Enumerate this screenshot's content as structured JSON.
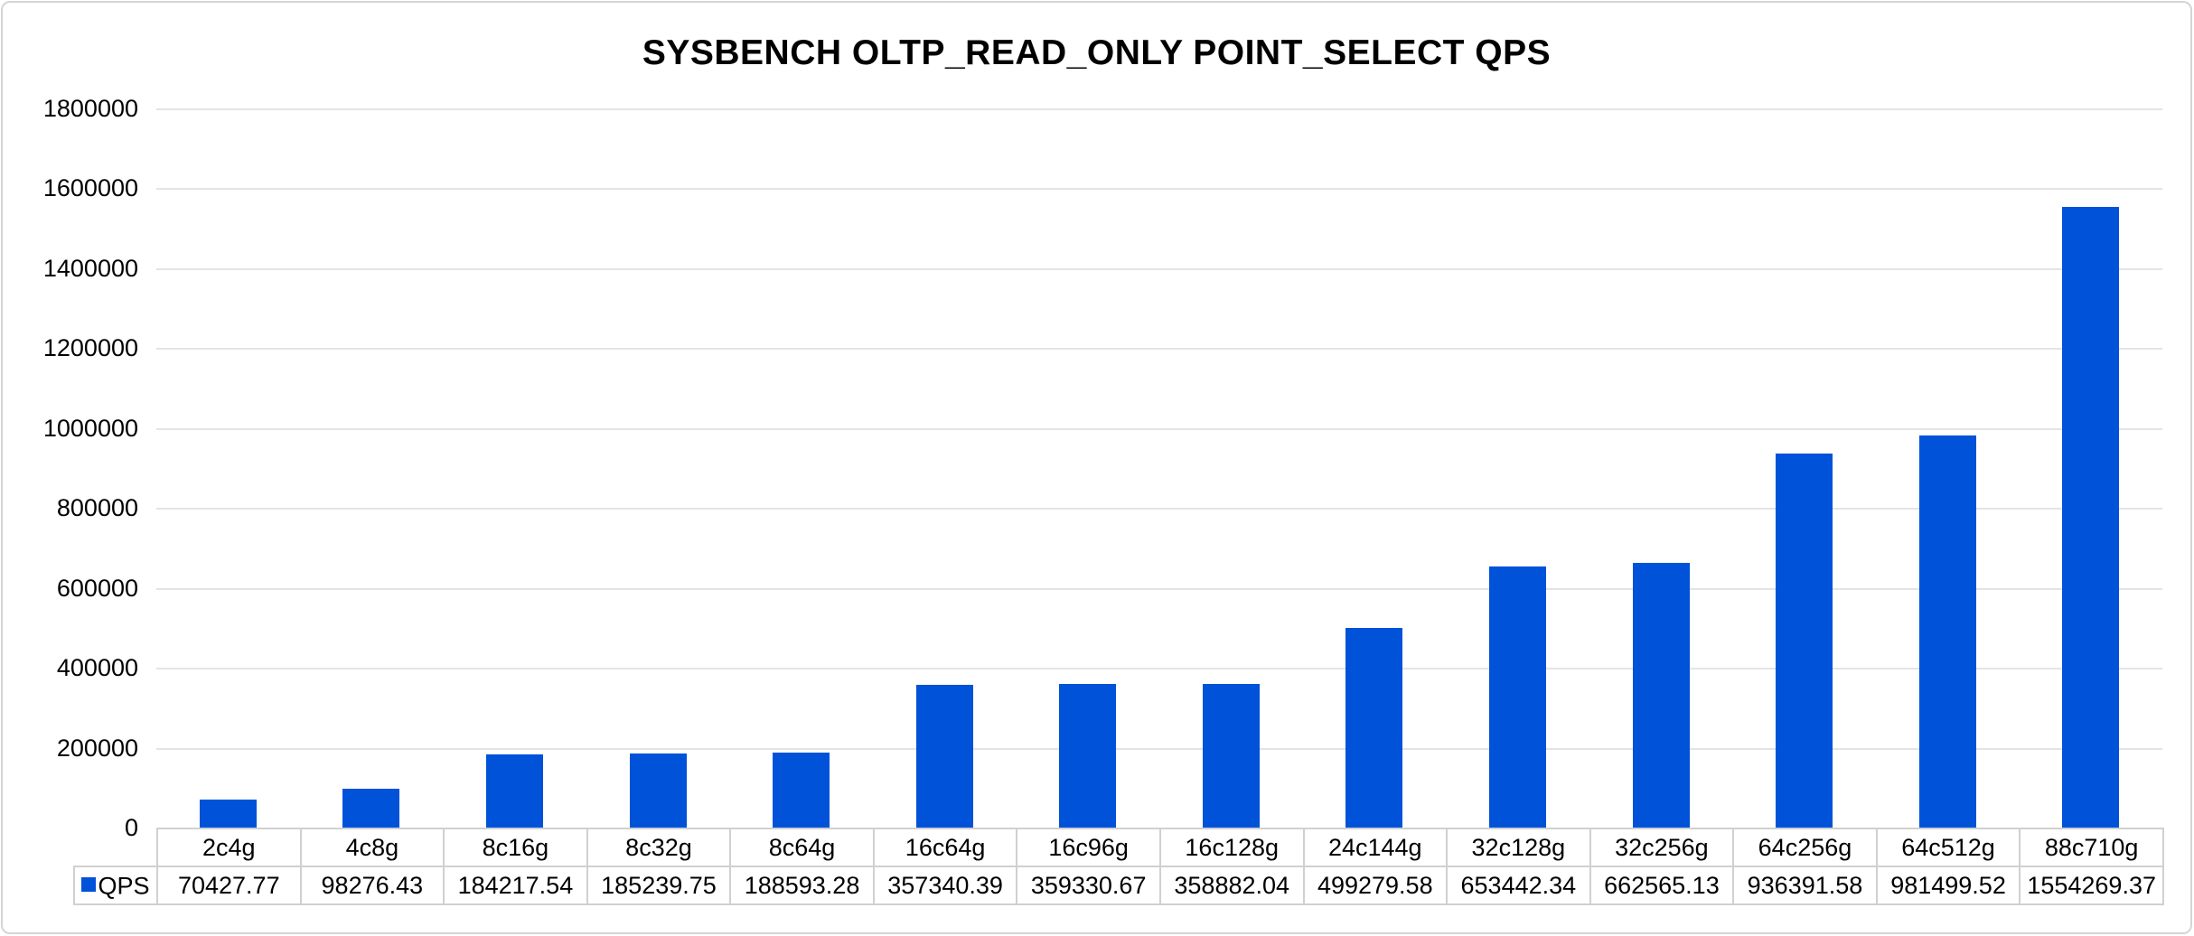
{
  "chart_data": {
    "type": "bar",
    "title": "SYSBENCH OLTP_READ_ONLY POINT_SELECT QPS",
    "categories": [
      "2c4g",
      "4c8g",
      "8c16g",
      "8c32g",
      "8c64g",
      "16c64g",
      "16c96g",
      "16c128g",
      "24c144g",
      "32c128g",
      "32c256g",
      "64c256g",
      "64c512g",
      "88c710g"
    ],
    "series": [
      {
        "name": "QPS",
        "color": "#0052d9",
        "values": [
          70427.77,
          98276.43,
          184217.54,
          185239.75,
          188593.28,
          357340.39,
          359330.67,
          358882.04,
          499279.58,
          653442.34,
          662565.13,
          936391.58,
          981499.52,
          1554269.37
        ]
      }
    ],
    "xlabel": "",
    "ylabel": "",
    "ylim": [
      0,
      1800000
    ],
    "y_tick_interval": 200000,
    "y_tick_labels": [
      "0",
      "200000",
      "400000",
      "600000",
      "800000",
      "1000000",
      "1200000",
      "1400000",
      "1600000",
      "1800000"
    ],
    "grid": "horizontal",
    "grid_color": "#e4e4e4",
    "table_border_color": "#d0d0d0",
    "legend_position": "data-table-left",
    "data_table_shown": true,
    "value_decimals": 2
  }
}
